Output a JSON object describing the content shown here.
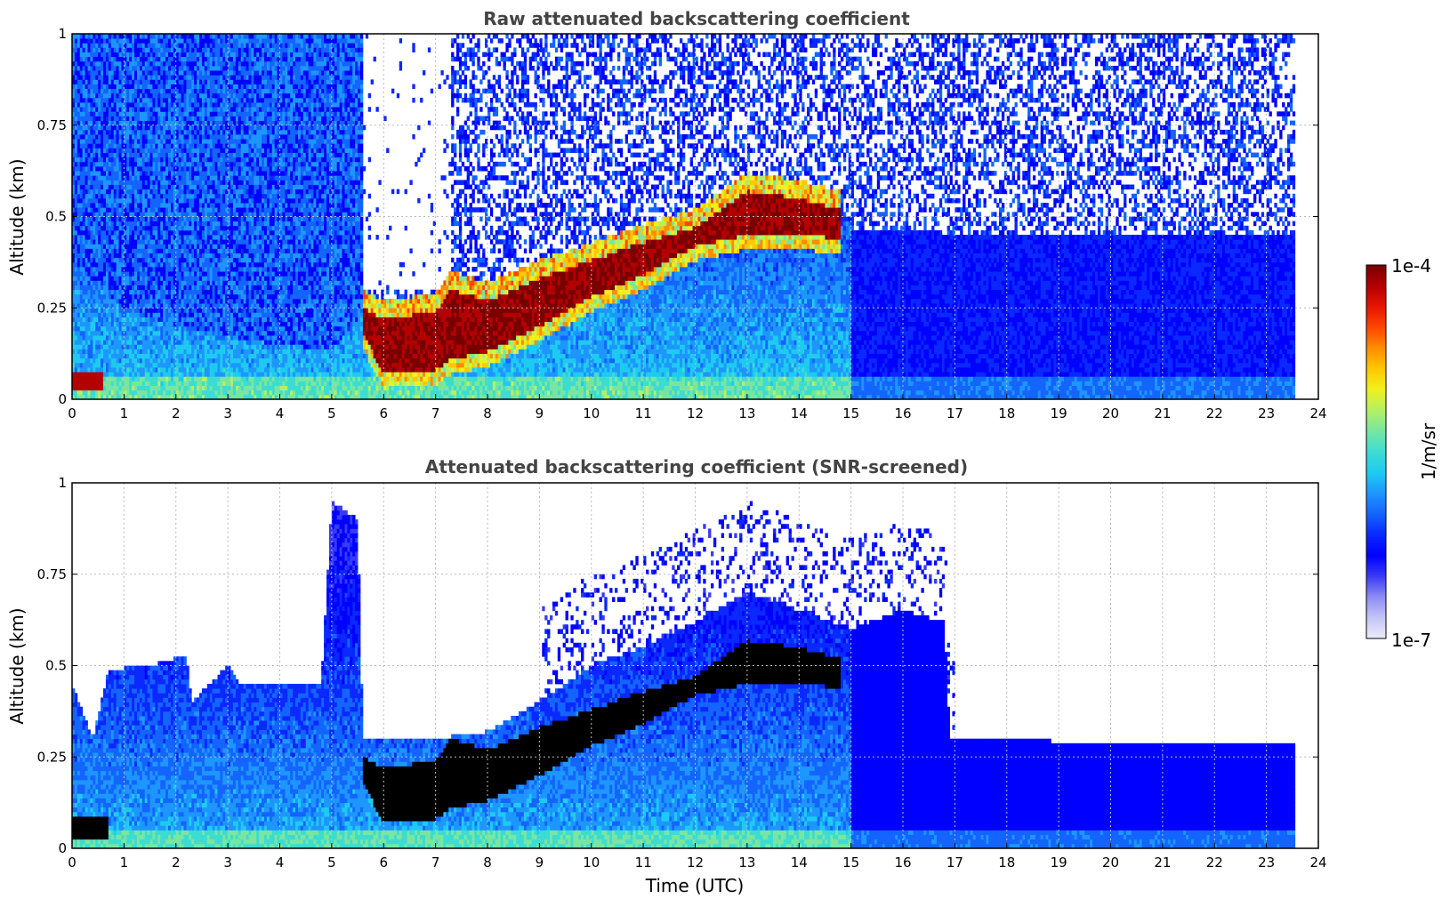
{
  "chart_data": [
    {
      "type": "heatmap",
      "title": "Raw attenuated backscattering coefficient",
      "xlabel": "",
      "ylabel": "Altitude (km)",
      "xlim": [
        0,
        24
      ],
      "ylim": [
        0,
        1
      ],
      "xticks": [
        "0",
        "1",
        "2",
        "3",
        "4",
        "5",
        "6",
        "7",
        "8",
        "9",
        "10",
        "11",
        "12",
        "13",
        "14",
        "15",
        "16",
        "17",
        "18",
        "19",
        "20",
        "21",
        "22",
        "23",
        "24"
      ],
      "yticks": [
        "0",
        "0.25",
        "0.5",
        "0.75",
        "1"
      ],
      "grid": true,
      "data_end_time": 23.55,
      "features": {
        "layer_top_km": [
          [
            0,
            0.38
          ],
          [
            1,
            0.25
          ],
          [
            2,
            0.2
          ],
          [
            3,
            0.17
          ],
          [
            4,
            0.15
          ],
          [
            5,
            0.13
          ],
          [
            5.6,
            0.24
          ],
          [
            6,
            0.21
          ],
          [
            7,
            0.22
          ],
          [
            7.4,
            0.3
          ],
          [
            8,
            0.28
          ],
          [
            9,
            0.32
          ],
          [
            10,
            0.38
          ],
          [
            11,
            0.45
          ],
          [
            12,
            0.48
          ],
          [
            13,
            0.6
          ],
          [
            14,
            0.58
          ],
          [
            14.8,
            0.55
          ],
          [
            15,
            0.46
          ],
          [
            16,
            0.46
          ],
          [
            18,
            0.45
          ],
          [
            20,
            0.45
          ],
          [
            22,
            0.45
          ],
          [
            23.5,
            0.45
          ]
        ],
        "strong_layer_top_km": [
          [
            5.6,
            0.25
          ],
          [
            6,
            0.22
          ],
          [
            7,
            0.24
          ],
          [
            7.3,
            0.3
          ],
          [
            8,
            0.27
          ],
          [
            9,
            0.33
          ],
          [
            10,
            0.38
          ],
          [
            11,
            0.43
          ],
          [
            12,
            0.47
          ],
          [
            13,
            0.57
          ],
          [
            14,
            0.55
          ],
          [
            14.8,
            0.52
          ]
        ],
        "strong_layer_bottom_km": [
          [
            5.6,
            0.18
          ],
          [
            6,
            0.07
          ],
          [
            7,
            0.08
          ],
          [
            7.3,
            0.11
          ],
          [
            8,
            0.13
          ],
          [
            9,
            0.2
          ],
          [
            10,
            0.28
          ],
          [
            11,
            0.34
          ],
          [
            12,
            0.42
          ],
          [
            13,
            0.45
          ],
          [
            14,
            0.45
          ],
          [
            14.8,
            0.44
          ]
        ]
      }
    },
    {
      "type": "heatmap",
      "title": "Attenuated backscattering coefficient (SNR-screened)",
      "xlabel": "Time (UTC)",
      "ylabel": "Altitude (km)",
      "xlim": [
        0,
        24
      ],
      "ylim": [
        0,
        1
      ],
      "xticks": [
        "0",
        "1",
        "2",
        "3",
        "4",
        "5",
        "6",
        "7",
        "8",
        "9",
        "10",
        "11",
        "12",
        "13",
        "14",
        "15",
        "16",
        "17",
        "18",
        "19",
        "20",
        "21",
        "22",
        "23",
        "24"
      ],
      "yticks": [
        "0",
        "0.25",
        "0.5",
        "0.75",
        "1"
      ],
      "grid": true,
      "data_end_time": 23.55,
      "features": {
        "screen_top_km": [
          [
            0,
            0.45
          ],
          [
            0.4,
            0.3
          ],
          [
            0.7,
            0.49
          ],
          [
            1.5,
            0.5
          ],
          [
            2.2,
            0.53
          ],
          [
            2.3,
            0.4
          ],
          [
            3,
            0.5
          ],
          [
            3.2,
            0.45
          ],
          [
            4,
            0.45
          ],
          [
            4.8,
            0.45
          ],
          [
            5,
            0.95
          ],
          [
            5.5,
            0.9
          ],
          [
            5.6,
            0.3
          ],
          [
            7,
            0.3
          ],
          [
            8,
            0.32
          ],
          [
            9,
            0.4
          ],
          [
            10,
            0.5
          ],
          [
            11,
            0.55
          ],
          [
            12,
            0.62
          ],
          [
            13,
            0.7
          ],
          [
            14,
            0.65
          ],
          [
            15,
            0.6
          ],
          [
            16,
            0.65
          ],
          [
            16.8,
            0.62
          ],
          [
            16.9,
            0.3
          ],
          [
            20,
            0.29
          ],
          [
            23.55,
            0.29
          ]
        ]
      }
    }
  ],
  "colorbar": {
    "max_label": "1e-4",
    "min_label": "1e-7",
    "unit_label": "1/m/sr",
    "colors": [
      "#ececfa",
      "#c4c4f5",
      "#8c8cf5",
      "#3a3af5",
      "#0000ff",
      "#0a28ff",
      "#1464ff",
      "#1e96ff",
      "#1ecbf0",
      "#3cdcd2",
      "#78e6a0",
      "#b4f064",
      "#f0f01e",
      "#ffc800",
      "#ff8c00",
      "#ff4600",
      "#e61400",
      "#b40000",
      "#780000"
    ]
  }
}
